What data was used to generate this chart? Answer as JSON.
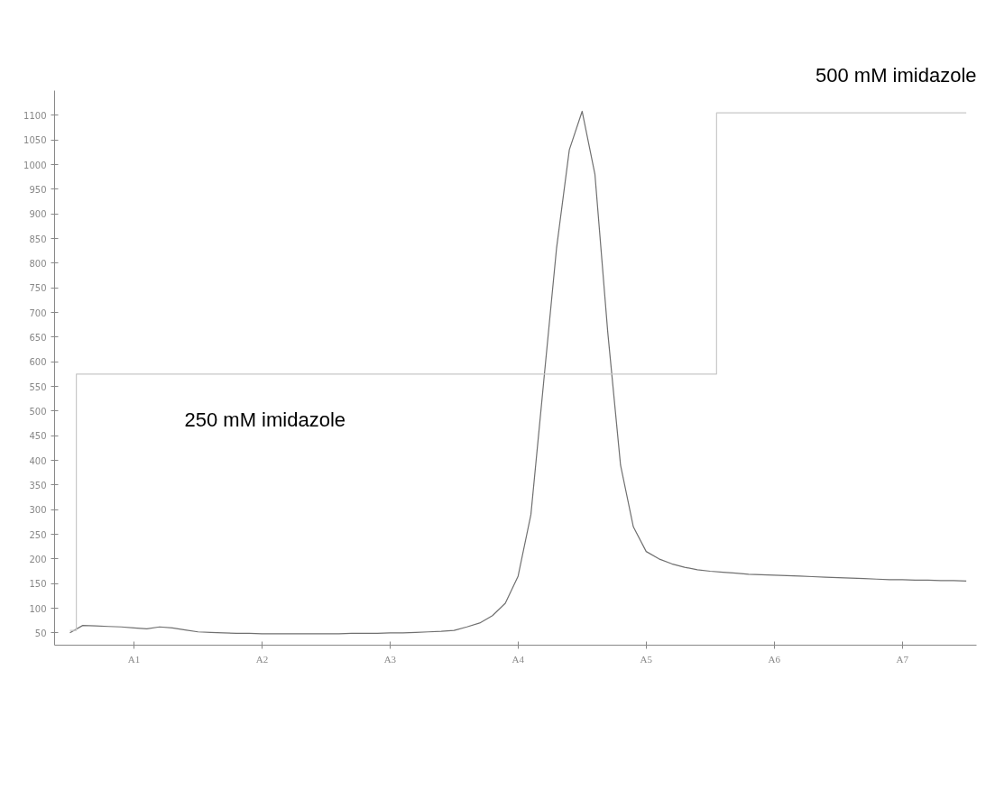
{
  "chart_data": {
    "type": "line",
    "categories": [
      null,
      null,
      null,
      null,
      null,
      "A1",
      null,
      null,
      null,
      null,
      null,
      null,
      null,
      null,
      null,
      "A2",
      null,
      null,
      null,
      null,
      null,
      null,
      null,
      null,
      null,
      "A3",
      null,
      null,
      null,
      null,
      null,
      null,
      null,
      null,
      null,
      "A4",
      null,
      null,
      null,
      null,
      null,
      null,
      null,
      null,
      null,
      "A5",
      null,
      null,
      null,
      null,
      null,
      null,
      null,
      null,
      null,
      "A6",
      null,
      null,
      null,
      null,
      null,
      null,
      null,
      null,
      null,
      "A7",
      null,
      null,
      null,
      null,
      null
    ],
    "series": [
      {
        "color": "#707070",
        "values": [
          50,
          65,
          64,
          63,
          62,
          60,
          58,
          62,
          60,
          56,
          52,
          51,
          50,
          49,
          49,
          48,
          48,
          48,
          48,
          48,
          48,
          48,
          49,
          49,
          49,
          50,
          50,
          51,
          52,
          53,
          55,
          62,
          70,
          85,
          110,
          165,
          290,
          560,
          830,
          1030,
          1108,
          980,
          660,
          390,
          265,
          215,
          200,
          190,
          183,
          178,
          175,
          173,
          171,
          169,
          168,
          167,
          166,
          165,
          164,
          163,
          162,
          161,
          160,
          159,
          158,
          158,
          157,
          157,
          156,
          156,
          155
        ]
      },
      {
        "type": "step",
        "color": "#c8c8c8",
        "values": [
          55,
          575,
          575,
          575,
          575,
          575,
          575,
          575,
          575,
          575,
          575,
          575,
          575,
          575,
          575,
          575,
          575,
          575,
          575,
          575,
          575,
          575,
          575,
          575,
          575,
          575,
          575,
          575,
          575,
          575,
          575,
          575,
          575,
          575,
          575,
          575,
          575,
          575,
          575,
          575,
          575,
          575,
          575,
          575,
          575,
          575,
          575,
          575,
          575,
          575,
          575,
          1105,
          1105,
          1105,
          1105,
          1105,
          1105,
          1105,
          1105,
          1105,
          1105,
          1105,
          1105,
          1105,
          1105,
          1105,
          1105,
          1105,
          1105,
          1105,
          1105
        ]
      }
    ],
    "ylim": [
      25,
      1150
    ],
    "yticks": [
      50,
      100,
      150,
      200,
      250,
      300,
      350,
      400,
      450,
      500,
      550,
      600,
      650,
      700,
      750,
      800,
      850,
      900,
      950,
      1000,
      1050,
      1100
    ],
    "annotations": [
      "250 mM imidazole",
      "500 mM imidazole"
    ],
    "grid": false,
    "marker": "none",
    "line_style": "solid"
  }
}
